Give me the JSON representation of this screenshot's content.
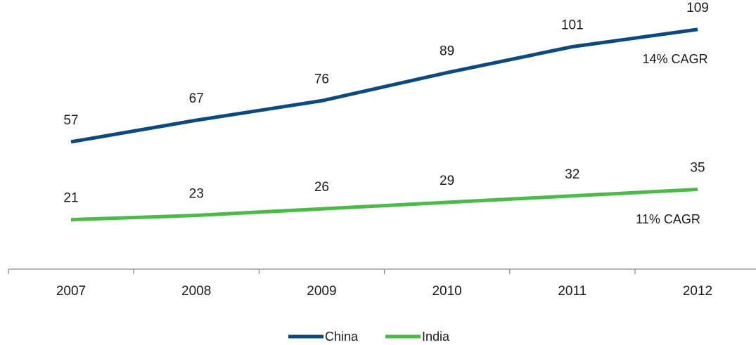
{
  "chart_data": {
    "type": "line",
    "categories": [
      "2007",
      "2008",
      "2009",
      "2010",
      "2011",
      "2012"
    ],
    "series": [
      {
        "name": "China",
        "values": [
          57,
          67,
          76,
          89,
          101,
          109
        ],
        "color": "#0b4a80",
        "annotation": "14% CAGR"
      },
      {
        "name": "India",
        "values": [
          21,
          23,
          26,
          29,
          32,
          35
        ],
        "color": "#4cba48",
        "annotation": "11% CAGR"
      }
    ],
    "title": "",
    "xlabel": "",
    "ylabel": "",
    "ylim": [
      0,
      120
    ],
    "grid": false,
    "legend": "bottom-center",
    "axis_color": "#8c8c8c"
  }
}
